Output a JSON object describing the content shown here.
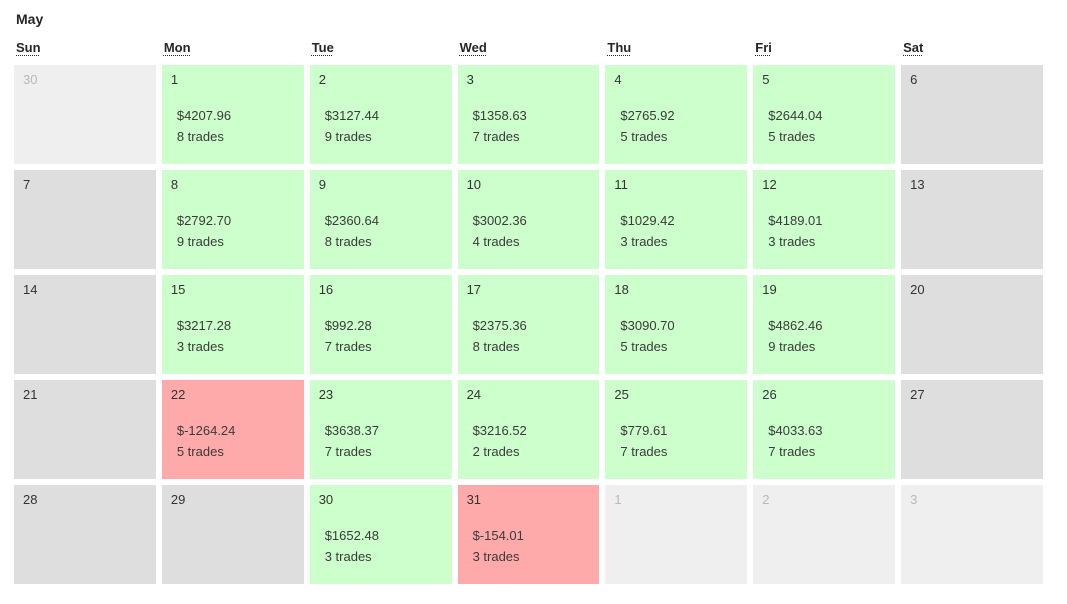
{
  "calendar": {
    "title": "May",
    "weekdays": [
      "Sun",
      "Mon",
      "Tue",
      "Wed",
      "Thu",
      "Fri",
      "Sat"
    ],
    "colors": {
      "positive_bg": "#ccffcc",
      "negative_bg": "#ffaaaa",
      "neutral_bg": "#dedede",
      "outside_bg": "#efefef",
      "outside_text": "#b9b9b9",
      "text": "#333333"
    },
    "weeks": [
      [
        {
          "day": "30",
          "outside": true
        },
        {
          "day": "1",
          "pnl": "$4207.96",
          "trades": "8 trades",
          "state": "positive"
        },
        {
          "day": "2",
          "pnl": "$3127.44",
          "trades": "9 trades",
          "state": "positive"
        },
        {
          "day": "3",
          "pnl": "$1358.63",
          "trades": "7 trades",
          "state": "positive"
        },
        {
          "day": "4",
          "pnl": "$2765.92",
          "trades": "5 trades",
          "state": "positive"
        },
        {
          "day": "5",
          "pnl": "$2644.04",
          "trades": "5 trades",
          "state": "positive"
        },
        {
          "day": "6",
          "state": "neutral"
        }
      ],
      [
        {
          "day": "7",
          "state": "neutral"
        },
        {
          "day": "8",
          "pnl": "$2792.70",
          "trades": "9 trades",
          "state": "positive"
        },
        {
          "day": "9",
          "pnl": "$2360.64",
          "trades": "8 trades",
          "state": "positive"
        },
        {
          "day": "10",
          "pnl": "$3002.36",
          "trades": "4 trades",
          "state": "positive"
        },
        {
          "day": "11",
          "pnl": "$1029.42",
          "trades": "3 trades",
          "state": "positive"
        },
        {
          "day": "12",
          "pnl": "$4189.01",
          "trades": "3 trades",
          "state": "positive"
        },
        {
          "day": "13",
          "state": "neutral"
        }
      ],
      [
        {
          "day": "14",
          "state": "neutral"
        },
        {
          "day": "15",
          "pnl": "$3217.28",
          "trades": "3 trades",
          "state": "positive"
        },
        {
          "day": "16",
          "pnl": "$992.28",
          "trades": "7 trades",
          "state": "positive"
        },
        {
          "day": "17",
          "pnl": "$2375.36",
          "trades": "8 trades",
          "state": "positive"
        },
        {
          "day": "18",
          "pnl": "$3090.70",
          "trades": "5 trades",
          "state": "positive"
        },
        {
          "day": "19",
          "pnl": "$4862.46",
          "trades": "9 trades",
          "state": "positive"
        },
        {
          "day": "20",
          "state": "neutral"
        }
      ],
      [
        {
          "day": "21",
          "state": "neutral"
        },
        {
          "day": "22",
          "pnl": "$-1264.24",
          "trades": "5 trades",
          "state": "negative"
        },
        {
          "day": "23",
          "pnl": "$3638.37",
          "trades": "7 trades",
          "state": "positive"
        },
        {
          "day": "24",
          "pnl": "$3216.52",
          "trades": "2 trades",
          "state": "positive"
        },
        {
          "day": "25",
          "pnl": "$779.61",
          "trades": "7 trades",
          "state": "positive"
        },
        {
          "day": "26",
          "pnl": "$4033.63",
          "trades": "7 trades",
          "state": "positive"
        },
        {
          "day": "27",
          "state": "neutral"
        }
      ],
      [
        {
          "day": "28",
          "state": "neutral"
        },
        {
          "day": "29",
          "state": "neutral"
        },
        {
          "day": "30",
          "pnl": "$1652.48",
          "trades": "3 trades",
          "state": "positive"
        },
        {
          "day": "31",
          "pnl": "$-154.01",
          "trades": "3 trades",
          "state": "negative"
        },
        {
          "day": "1",
          "outside": true
        },
        {
          "day": "2",
          "outside": true
        },
        {
          "day": "3",
          "outside": true
        }
      ]
    ]
  }
}
